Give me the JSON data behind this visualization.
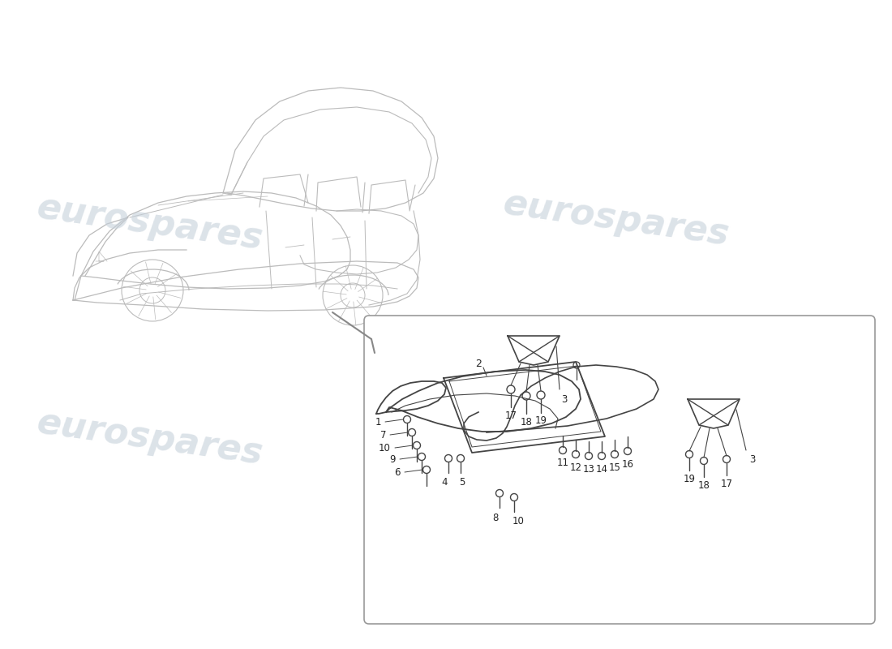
{
  "background_color": "#ffffff",
  "watermark_text": "eurospares",
  "watermark_color": "#c5d0da",
  "watermark_alpha": 0.6,
  "line_color": "#444444",
  "label_color": "#222222",
  "car_color": "#bbbbbb",
  "box_edge_color": "#999999",
  "top_bracket_labels": [
    "17",
    "18",
    "19",
    "3"
  ],
  "right_bracket_labels": [
    "19",
    "18",
    "17",
    "3"
  ],
  "left_side_labels": [
    "1",
    "7",
    "10",
    "9",
    "6"
  ],
  "bottom_labels": [
    "4",
    "5",
    "8",
    "10"
  ],
  "right_row_labels": [
    "11",
    "12",
    "13",
    "14",
    "15",
    "16"
  ],
  "part2_label": "2"
}
